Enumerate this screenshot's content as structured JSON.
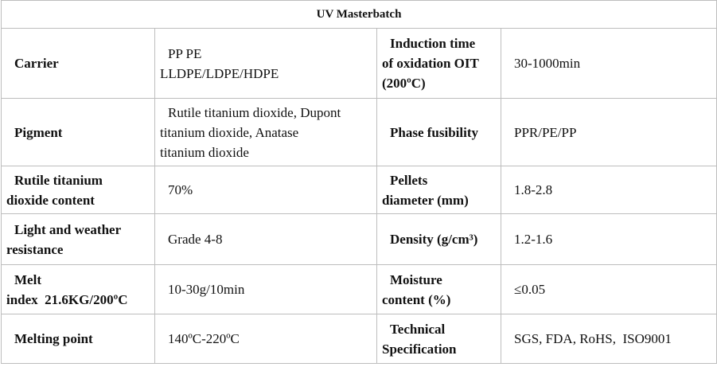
{
  "table": {
    "title": "UV Masterbatch",
    "rows": [
      [
        [
          "Carrier"
        ],
        [
          "PP PE",
          "LLDPE/LDPE/HDPE"
        ],
        [
          "Induction time",
          "of oxidation OIT",
          "(200ºC)"
        ],
        [
          "30-1000min"
        ]
      ],
      [
        [
          "Pigment"
        ],
        [
          "Rutile titanium dioxide, Dupont",
          "titanium dioxide, Anatase",
          "titanium dioxide"
        ],
        [
          "Phase fusibility"
        ],
        [
          "PPR/PE/PP"
        ]
      ],
      [
        [
          "Rutile titanium",
          "dioxide content"
        ],
        [
          "70%"
        ],
        [
          "Pellets",
          "diameter (mm)"
        ],
        [
          "1.8-2.8"
        ]
      ],
      [
        [
          "Light and weather",
          "resistance"
        ],
        [
          "Grade 4-8"
        ],
        [
          "Density (g/cm³)"
        ],
        [
          "1.2-1.6"
        ]
      ],
      [
        [
          "Melt",
          "index  21.6KG/200ºC"
        ],
        [
          "10-30g/10min"
        ],
        [
          "Moisture",
          "content (%)"
        ],
        [
          "≤0.05"
        ]
      ],
      [
        [
          "Melting point"
        ],
        [
          "140ºC-220ºC"
        ],
        [
          "Technical",
          "Specification"
        ],
        [
          "SGS, FDA, RoHS,  ISO9001"
        ]
      ]
    ]
  }
}
